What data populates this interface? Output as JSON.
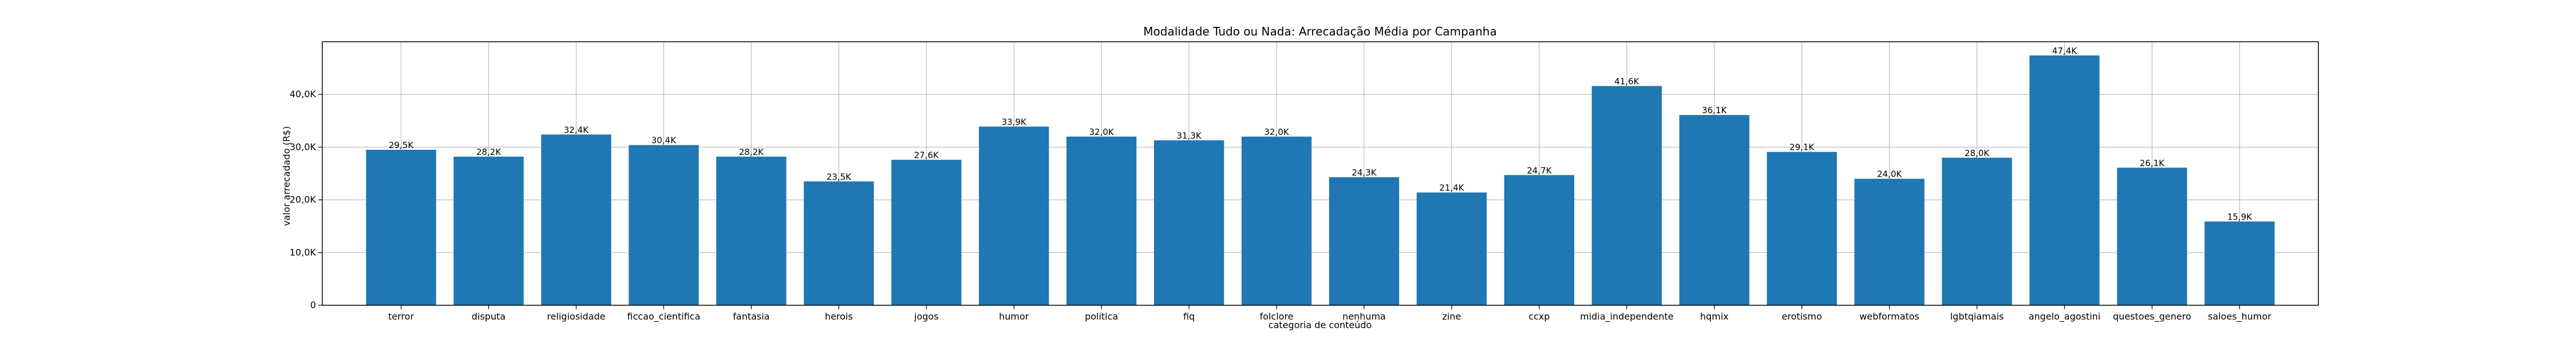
{
  "chart_data": {
    "type": "bar",
    "title": "Modalidade Tudo ou Nada: Arrecadação Média por Campanha",
    "xlabel": "categoria de conteúdo",
    "ylabel": "valor arrecadado (R$)",
    "ylim": [
      0,
      50000
    ],
    "yticks": [
      0,
      10000,
      20000,
      30000,
      40000
    ],
    "ytick_labels": [
      "0",
      "10,0K",
      "20,0K",
      "30,0K",
      "40,0K"
    ],
    "grid": true,
    "bar_color": "#1f77b4",
    "categories": [
      "terror",
      "disputa",
      "religiosidade",
      "ficcao_cientifica",
      "fantasia",
      "herois",
      "jogos",
      "humor",
      "politica",
      "fiq",
      "folclore",
      "nenhuma",
      "zine",
      "ccxp",
      "midia_independente",
      "hqmix",
      "erotismo",
      "webformatos",
      "lgbtqiamais",
      "angelo_agostini",
      "questoes_genero",
      "saloes_humor"
    ],
    "values": [
      29500,
      28200,
      32400,
      30400,
      28200,
      23500,
      27600,
      33900,
      32000,
      31300,
      32000,
      24300,
      21400,
      24700,
      41600,
      36100,
      29100,
      24000,
      28000,
      47400,
      26100,
      15900
    ],
    "data_labels": [
      "29,5K",
      "28,2K",
      "32,4K",
      "30,4K",
      "28,2K",
      "23,5K",
      "27,6K",
      "33,9K",
      "32,0K",
      "31,3K",
      "32,0K",
      "24,3K",
      "21,4K",
      "24,7K",
      "41,6K",
      "36,1K",
      "29,1K",
      "24,0K",
      "28,0K",
      "47,4K",
      "26,1K",
      "15,9K"
    ]
  }
}
